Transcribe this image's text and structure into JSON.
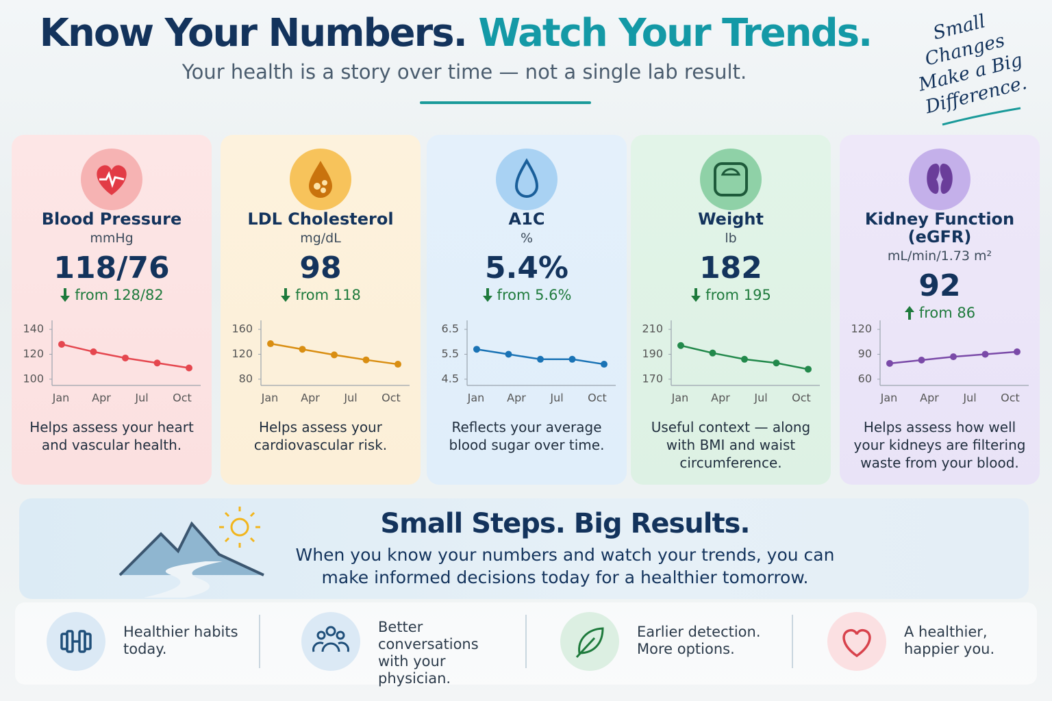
{
  "header": {
    "title_part1": "Know Your Numbers.",
    "title_part2": "Watch Your Trends.",
    "subtitle": "Your health is a story over time — not a single lab result.",
    "note": "Small Changes Make a Big Difference."
  },
  "cards": [
    {
      "title": "Blood Pressure",
      "unit": "mmHg",
      "value": "118/76",
      "change": "from 128/82",
      "trend": "down",
      "description": "Helps assess your heart and vascular health.",
      "chart": {
        "type": "line",
        "color": "#e5474f",
        "xticks": [
          "Jan",
          "Apr",
          "Jul",
          "Oct"
        ],
        "values": [
          128,
          122,
          117,
          113,
          109
        ],
        "ylim": [
          95,
          145
        ],
        "yticks": [
          140,
          120,
          100
        ]
      }
    },
    {
      "title": "LDL Cholesterol",
      "unit": "mg/dL",
      "value": "98",
      "change": "from 118",
      "trend": "down",
      "description": "Helps assess your cardiovascular risk.",
      "chart": {
        "type": "line",
        "color": "#d98e12",
        "xticks": [
          "Jan",
          "Apr",
          "Jul",
          "Oct"
        ],
        "values": [
          137,
          128,
          119,
          111,
          104
        ],
        "ylim": [
          70,
          170
        ],
        "yticks": [
          160,
          120,
          80
        ]
      }
    },
    {
      "title": "A1C",
      "unit": "%",
      "value": "5.4%",
      "change": "from 5.6%",
      "trend": "down",
      "description": "Reflects your average blood sugar over time.",
      "chart": {
        "type": "line",
        "color": "#1a73b5",
        "xticks": [
          "Jan",
          "Apr",
          "Jul",
          "Oct"
        ],
        "values": [
          5.7,
          5.5,
          5.3,
          5.3,
          5.1
        ],
        "ylim": [
          4.25,
          6.75
        ],
        "yticks": [
          6.5,
          5.5,
          4.5
        ]
      }
    },
    {
      "title": "Weight",
      "unit": "lb",
      "value": "182",
      "change": "from 195",
      "trend": "down",
      "description": "Useful context — along with BMI and waist circumference.",
      "chart": {
        "type": "line",
        "color": "#22894b",
        "xticks": [
          "Jan",
          "Apr",
          "Jul",
          "Oct"
        ],
        "values": [
          197,
          191,
          186,
          183,
          178
        ],
        "ylim": [
          165,
          215
        ],
        "yticks": [
          210,
          190,
          170
        ]
      }
    },
    {
      "title": "Kidney Function (eGFR)",
      "unit": "mL/min/1.73 m²",
      "value": "92",
      "change": "from 86",
      "trend": "up",
      "description": "Helps assess how well your kidneys are filtering waste from your blood.",
      "chart": {
        "type": "line",
        "color": "#7a4aa8",
        "xticks": [
          "Jan",
          "Apr",
          "Jul",
          "Oct"
        ],
        "values": [
          79,
          83,
          87,
          90,
          93
        ],
        "ylim": [
          52.5,
          127.5
        ],
        "yticks": [
          120,
          90,
          60
        ]
      }
    }
  ],
  "banner": {
    "title": "Small Steps. Big Results.",
    "text": "When you know your numbers and watch your trends, you can make informed decisions today for a healthier tomorrow."
  },
  "benefits": [
    "Healthier habits today.",
    "Better conversations with your physician.",
    "Earlier detection. More options.",
    "A healthier, happier you."
  ]
}
